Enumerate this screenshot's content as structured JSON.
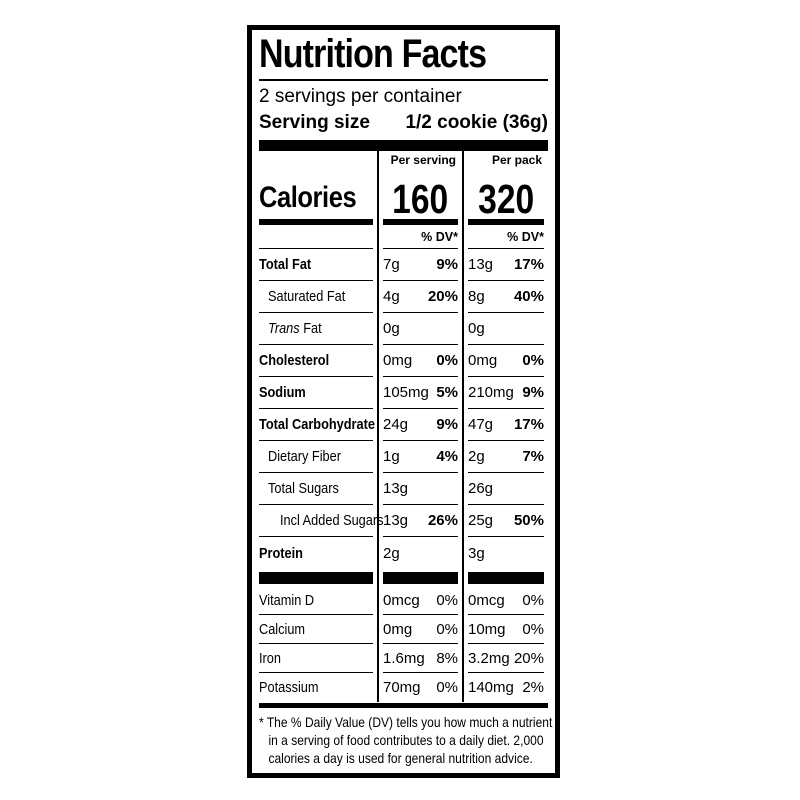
{
  "nutrition_label": {
    "title": "Nutrition Facts",
    "servings_per_container": "2 servings per container",
    "serving_size": {
      "label": "Serving size",
      "value": "1/2 cookie (36g)"
    },
    "calories": {
      "label": "Calories",
      "per_serving": {
        "header": "Per serving",
        "value": "160"
      },
      "per_pack": {
        "header": "Per pack",
        "value": "320"
      }
    },
    "dv_column_header": "% DV*",
    "nutrients": [
      {
        "name": "Total Fat",
        "bold": true,
        "indent": 0,
        "per_serving": {
          "amount": "7g",
          "dv": "9%"
        },
        "per_pack": {
          "amount": "13g",
          "dv": "17%"
        }
      },
      {
        "name": "Saturated Fat",
        "bold": false,
        "indent": 1,
        "per_serving": {
          "amount": "4g",
          "dv": "20%"
        },
        "per_pack": {
          "amount": "8g",
          "dv": "40%"
        }
      },
      {
        "name": "Trans Fat",
        "bold": false,
        "indent": 1,
        "name_parts": [
          {
            "text": "Trans",
            "italic": true
          },
          {
            "text": " Fat",
            "italic": false
          }
        ],
        "per_serving": {
          "amount": "0g",
          "dv": ""
        },
        "per_pack": {
          "amount": "0g",
          "dv": ""
        }
      },
      {
        "name": "Cholesterol",
        "bold": true,
        "indent": 0,
        "per_serving": {
          "amount": "0mg",
          "dv": "0%"
        },
        "per_pack": {
          "amount": "0mg",
          "dv": "0%"
        }
      },
      {
        "name": "Sodium",
        "bold": true,
        "indent": 0,
        "per_serving": {
          "amount": "105mg",
          "dv": "5%"
        },
        "per_pack": {
          "amount": "210mg",
          "dv": "9%"
        }
      },
      {
        "name": "Total Carbohydrate",
        "bold": true,
        "indent": 0,
        "per_serving": {
          "amount": "24g",
          "dv": "9%"
        },
        "per_pack": {
          "amount": "47g",
          "dv": "17%"
        }
      },
      {
        "name": "Dietary Fiber",
        "bold": false,
        "indent": 1,
        "per_serving": {
          "amount": "1g",
          "dv": "4%"
        },
        "per_pack": {
          "amount": "2g",
          "dv": "7%"
        }
      },
      {
        "name": "Total Sugars",
        "bold": false,
        "indent": 1,
        "per_serving": {
          "amount": "13g",
          "dv": ""
        },
        "per_pack": {
          "amount": "26g",
          "dv": ""
        }
      },
      {
        "name": "Incl Added Sugars",
        "bold": false,
        "indent": 2,
        "per_serving": {
          "amount": "13g",
          "dv": "26%"
        },
        "per_pack": {
          "amount": "25g",
          "dv": "50%"
        }
      },
      {
        "name": "Protein",
        "bold": true,
        "indent": 0,
        "per_serving": {
          "amount": "2g",
          "dv": ""
        },
        "per_pack": {
          "amount": "3g",
          "dv": ""
        }
      }
    ],
    "micronutrients": [
      {
        "name": "Vitamin D",
        "per_serving": {
          "amount": "0mcg",
          "dv": "0%"
        },
        "per_pack": {
          "amount": "0mcg",
          "dv": "0%"
        }
      },
      {
        "name": "Calcium",
        "per_serving": {
          "amount": "0mg",
          "dv": "0%"
        },
        "per_pack": {
          "amount": "10mg",
          "dv": "0%"
        }
      },
      {
        "name": "Iron",
        "per_serving": {
          "amount": "1.6mg",
          "dv": "8%"
        },
        "per_pack": {
          "amount": "3.2mg",
          "dv": "20%"
        }
      },
      {
        "name": "Potassium",
        "per_serving": {
          "amount": "70mg",
          "dv": "0%"
        },
        "per_pack": {
          "amount": "140mg",
          "dv": "2%"
        }
      }
    ],
    "footnote_lines": [
      "* The % Daily Value (DV) tells you how much a nutrient",
      "in a serving of food contributes to a daily diet. 2,000",
      "calories a day is used for general nutrition advice."
    ],
    "colors": {
      "ink": "#000000",
      "background": "#ffffff"
    }
  }
}
